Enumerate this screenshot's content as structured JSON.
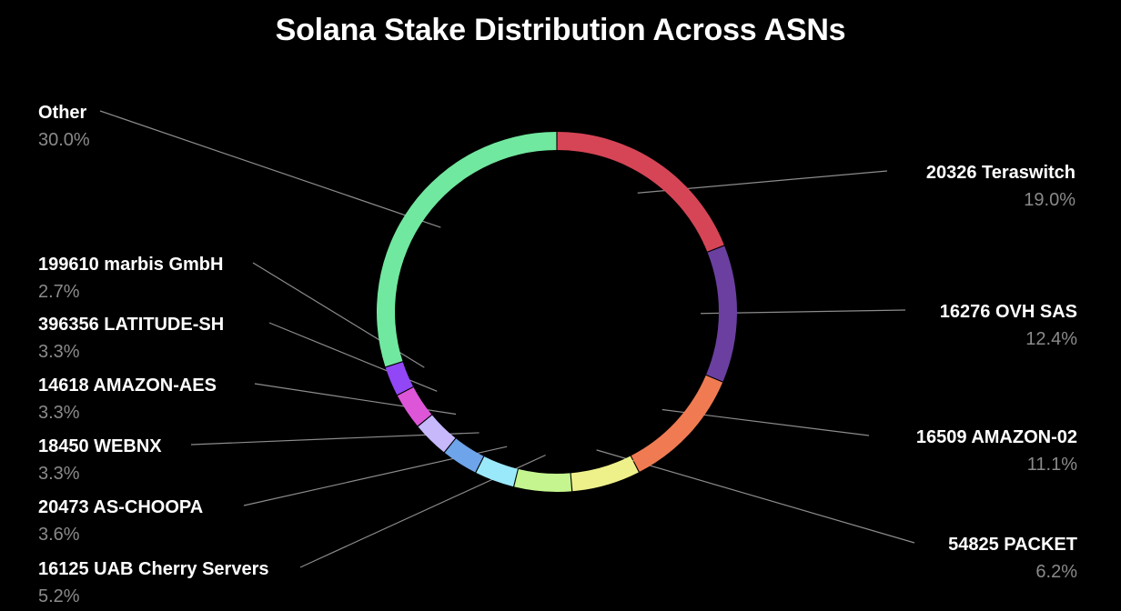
{
  "chart_data": {
    "type": "pie",
    "title": "Solana Stake Distribution Across ASNs",
    "slices": [
      {
        "label": "20326 Teraswitch",
        "pct_label": "19.0%",
        "value": 19.0,
        "color": "#d64556"
      },
      {
        "label": "16276 OVH SAS",
        "pct_label": "12.4%",
        "value": 12.4,
        "color": "#6b3fa0"
      },
      {
        "label": "16509 AMAZON-02",
        "pct_label": "11.1%",
        "value": 11.1,
        "color": "#f07b52"
      },
      {
        "label": "54825 PACKET",
        "pct_label": "6.2%",
        "value": 6.2,
        "color": "#eef08a"
      },
      {
        "label": "16125 UAB Cherry Servers",
        "pct_label": "5.2%",
        "value": 5.2,
        "color": "#c4f58f"
      },
      {
        "label": "20473 AS-CHOOPA",
        "pct_label": "3.6%",
        "value": 3.6,
        "color": "#9ae9fb"
      },
      {
        "label": "18450 WEBNX",
        "pct_label": "3.3%",
        "value": 3.3,
        "color": "#6da4ea"
      },
      {
        "label": "14618 AMAZON-AES",
        "pct_label": "3.3%",
        "value": 3.3,
        "color": "#c6b8fb"
      },
      {
        "label": "396356 LATITUDE-SH",
        "pct_label": "3.3%",
        "value": 3.3,
        "color": "#dd56d8"
      },
      {
        "label": "199610 marbis GmbH",
        "pct_label": "2.7%",
        "value": 2.7,
        "color": "#9147f5"
      },
      {
        "label": "Other",
        "pct_label": "30.0%",
        "value": 30.0,
        "color": "#71e89f"
      }
    ],
    "legend": "leader-line labels",
    "background": "#000000",
    "leader_line_color": "#8c8c8c"
  }
}
